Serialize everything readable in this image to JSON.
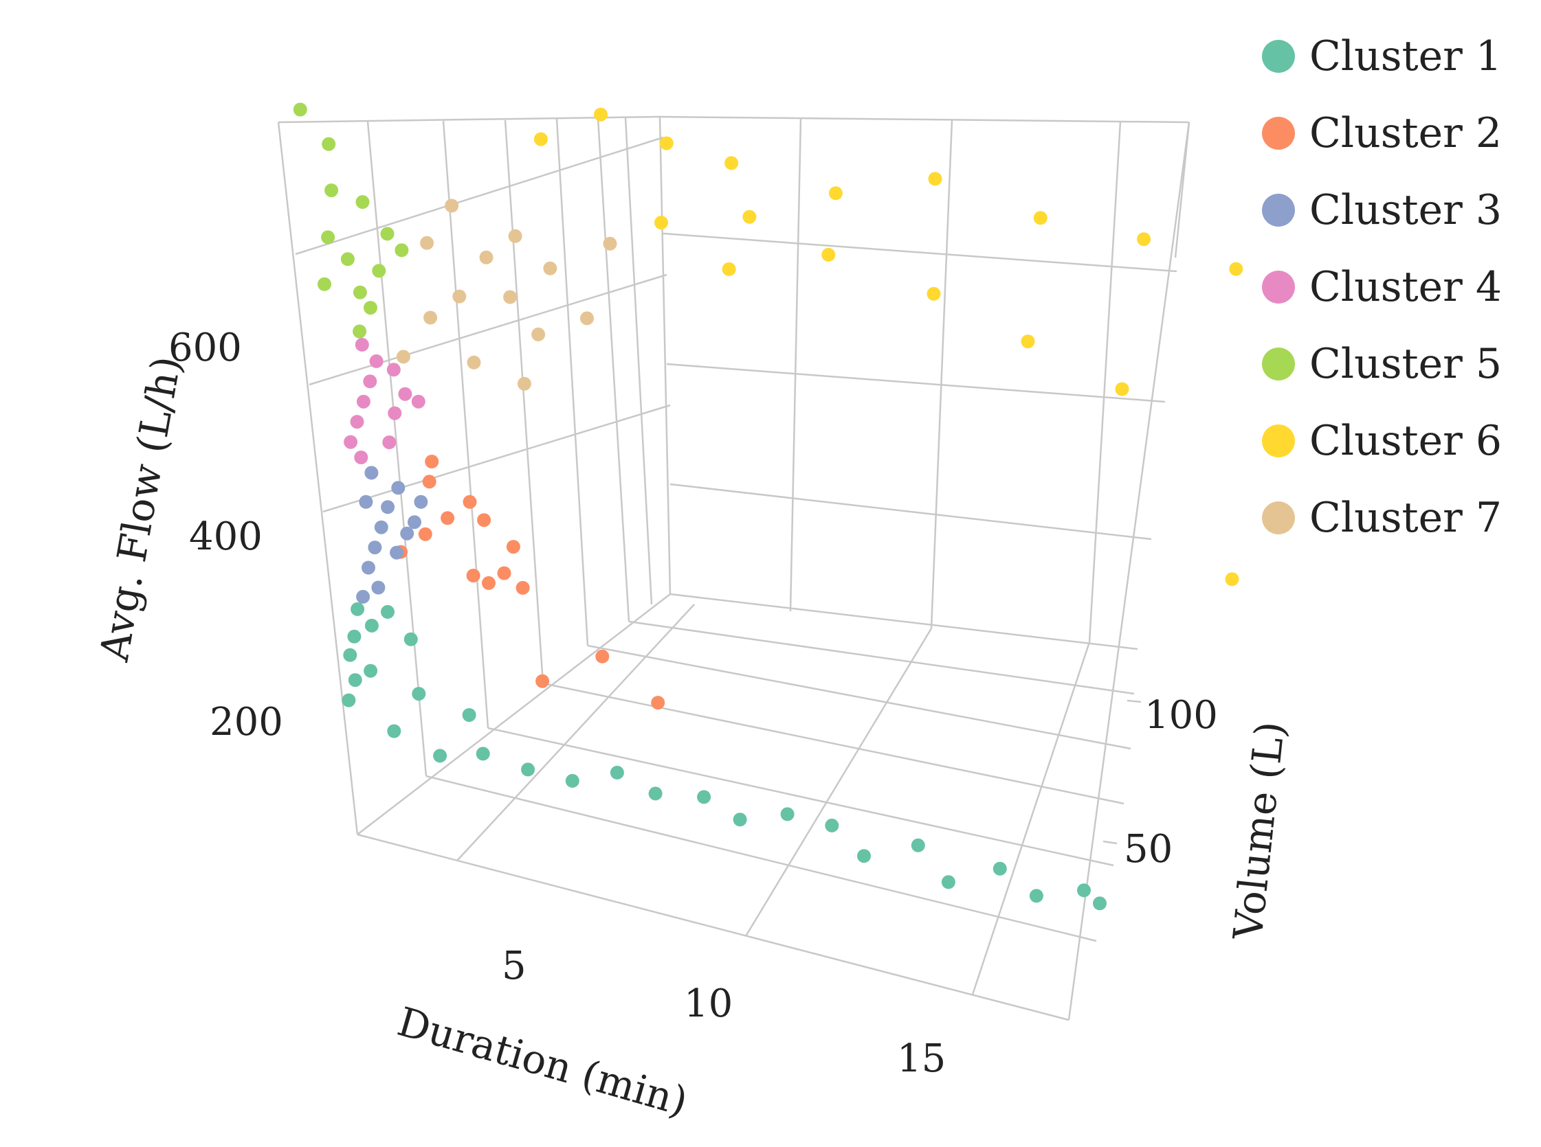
{
  "chart_data": {
    "type": "scatter",
    "title": "",
    "xlabel": "Duration (min)",
    "ylabel": "Volume (L)",
    "zlabel": "Avg. Flow (L/h)",
    "xlim": [
      0,
      18
    ],
    "ylim": [
      0,
      140
    ],
    "zlim": [
      0,
      800
    ],
    "xticks": [
      "5",
      "10",
      "15"
    ],
    "yticks": [
      "50",
      "100"
    ],
    "zticks": [
      "200",
      "400",
      "600"
    ],
    "legend_position": "top-right",
    "series": [
      {
        "name": "Cluster 1",
        "color": "#66c2a5",
        "points": [
          [
            0.1,
            1,
            150
          ],
          [
            0.2,
            2,
            200
          ],
          [
            0.3,
            3,
            220
          ],
          [
            0.5,
            5,
            180
          ],
          [
            1,
            4,
            120
          ],
          [
            2,
            6,
            100
          ],
          [
            3,
            8,
            110
          ],
          [
            4,
            10,
            100
          ],
          [
            5,
            12,
            95
          ],
          [
            6,
            15,
            110
          ],
          [
            7,
            14,
            100
          ],
          [
            8,
            18,
            100
          ],
          [
            9,
            16,
            90
          ],
          [
            10,
            20,
            100
          ],
          [
            11,
            22,
            95
          ],
          [
            12,
            18,
            80
          ],
          [
            13,
            25,
            90
          ],
          [
            14,
            20,
            70
          ],
          [
            15,
            26,
            85
          ],
          [
            16,
            24,
            70
          ],
          [
            17,
            28,
            80
          ],
          [
            17.5,
            26,
            75
          ],
          [
            0.4,
            4,
            250
          ],
          [
            0.6,
            6,
            230
          ],
          [
            1.5,
            8,
            160
          ],
          [
            2.5,
            12,
            140
          ],
          [
            0.2,
            3,
            170
          ],
          [
            0.8,
            10,
            240
          ],
          [
            1.2,
            12,
            210
          ]
        ]
      },
      {
        "name": "Cluster 2",
        "color": "#fc8d62",
        "points": [
          [
            1,
            15,
            300
          ],
          [
            1.5,
            18,
            320
          ],
          [
            2,
            20,
            340
          ],
          [
            2.5,
            22,
            360
          ],
          [
            3,
            25,
            280
          ],
          [
            2,
            28,
            260
          ],
          [
            3,
            30,
            300
          ],
          [
            1.5,
            24,
            390
          ],
          [
            2.5,
            27,
            330
          ],
          [
            4,
            20,
            180
          ],
          [
            5,
            30,
            200
          ],
          [
            6,
            35,
            150
          ],
          [
            3,
            32,
            250
          ],
          [
            2,
            34,
            240
          ],
          [
            1,
            30,
            350
          ]
        ]
      },
      {
        "name": "Cluster 3",
        "color": "#8da0cb",
        "points": [
          [
            0.2,
            10,
            250
          ],
          [
            0.3,
            12,
            280
          ],
          [
            0.4,
            14,
            300
          ],
          [
            0.5,
            16,
            320
          ],
          [
            0.6,
            18,
            340
          ],
          [
            0.8,
            20,
            360
          ],
          [
            1,
            22,
            320
          ],
          [
            0.4,
            16,
            380
          ],
          [
            0.3,
            14,
            350
          ],
          [
            0.5,
            12,
            260
          ],
          [
            0.7,
            18,
            290
          ],
          [
            0.9,
            20,
            310
          ],
          [
            1.1,
            24,
            340
          ]
        ]
      },
      {
        "name": "Cluster 4",
        "color": "#e78ac3",
        "points": [
          [
            0.2,
            12,
            420
          ],
          [
            0.3,
            14,
            440
          ],
          [
            0.4,
            16,
            460
          ],
          [
            0.5,
            18,
            480
          ],
          [
            0.6,
            20,
            500
          ],
          [
            0.8,
            22,
            440
          ],
          [
            1,
            24,
            460
          ],
          [
            0.4,
            18,
            520
          ],
          [
            0.3,
            14,
            400
          ],
          [
            0.7,
            20,
            410
          ],
          [
            1.2,
            26,
            450
          ],
          [
            0.9,
            22,
            490
          ]
        ]
      },
      {
        "name": "Cluster 5",
        "color": "#a6d854",
        "points": [
          [
            0.1,
            10,
            600
          ],
          [
            0.2,
            12,
            650
          ],
          [
            0.3,
            14,
            700
          ],
          [
            0.4,
            16,
            620
          ],
          [
            0.5,
            18,
            580
          ],
          [
            0.6,
            20,
            560
          ],
          [
            0.8,
            22,
            600
          ],
          [
            1,
            24,
            640
          ],
          [
            0.3,
            15,
            750
          ],
          [
            0.1,
            8,
            800
          ],
          [
            0.5,
            16,
            540
          ],
          [
            1.2,
            26,
            620
          ],
          [
            0.7,
            20,
            680
          ]
        ]
      },
      {
        "name": "Cluster 6",
        "color": "#ffd92f",
        "points": [
          [
            3,
            60,
            700
          ],
          [
            4,
            70,
            720
          ],
          [
            5,
            80,
            680
          ],
          [
            6,
            90,
            650
          ],
          [
            8,
            100,
            620
          ],
          [
            10,
            110,
            640
          ],
          [
            12,
            120,
            600
          ],
          [
            14,
            130,
            580
          ],
          [
            16,
            135,
            560
          ],
          [
            5,
            100,
            500
          ],
          [
            7,
            110,
            520
          ],
          [
            9,
            120,
            480
          ],
          [
            11,
            125,
            440
          ],
          [
            13,
            130,
            400
          ],
          [
            15,
            135,
            200
          ],
          [
            4,
            90,
            560
          ],
          [
            6,
            95,
            580
          ]
        ]
      },
      {
        "name": "Cluster 7",
        "color": "#e5c494",
        "points": [
          [
            1,
            25,
            500
          ],
          [
            1.5,
            30,
            540
          ],
          [
            2,
            35,
            560
          ],
          [
            2.5,
            40,
            600
          ],
          [
            3,
            45,
            620
          ],
          [
            3.5,
            50,
            580
          ],
          [
            4,
            55,
            520
          ],
          [
            2,
            38,
            480
          ],
          [
            3,
            42,
            460
          ],
          [
            1.5,
            32,
            620
          ],
          [
            2.5,
            48,
            540
          ],
          [
            4.5,
            60,
            600
          ],
          [
            2,
            36,
            660
          ],
          [
            3,
            50,
            500
          ]
        ]
      }
    ]
  }
}
